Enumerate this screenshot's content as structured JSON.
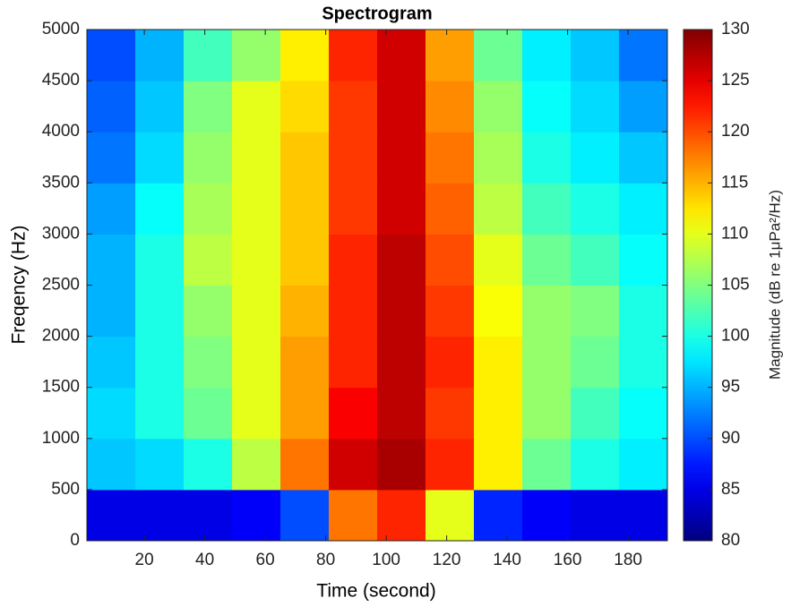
{
  "chart_data": {
    "type": "heatmap",
    "title": "Spectrogram",
    "x_label": "Time (second)",
    "y_label": "Freqency (Hz)",
    "colorbar_label": "Magnitude (dB re 1μPa²/Hz)",
    "colormap": "jet",
    "x": [
      9,
      25,
      41,
      57,
      73,
      89,
      105,
      121,
      137,
      153,
      169,
      185
    ],
    "y": [
      250,
      750,
      1250,
      1750,
      2250,
      2750,
      3250,
      3750,
      4250,
      4750
    ],
    "values": [
      [
        85,
        85,
        85,
        86,
        90,
        118,
        122,
        110,
        88,
        86,
        85,
        85
      ],
      [
        96,
        97,
        100,
        108,
        118,
        126,
        128,
        122,
        112,
        104,
        100,
        98
      ],
      [
        97,
        100,
        104,
        110,
        116,
        124,
        127,
        121,
        112,
        106,
        102,
        99
      ],
      [
        96,
        100,
        105,
        110,
        116,
        122,
        127,
        122,
        112,
        106,
        104,
        100
      ],
      [
        95,
        100,
        106,
        110,
        115,
        122,
        127,
        121,
        111,
        106,
        105,
        100
      ],
      [
        95,
        100,
        108,
        110,
        114,
        122,
        127,
        120,
        110,
        104,
        102,
        99
      ],
      [
        94,
        99,
        107,
        110,
        114,
        121,
        126,
        119,
        108,
        102,
        100,
        98
      ],
      [
        92,
        97,
        106,
        110,
        114,
        121,
        126,
        118,
        107,
        100,
        98,
        96
      ],
      [
        91,
        96,
        105,
        110,
        113,
        121,
        126,
        117,
        106,
        99,
        97,
        94
      ],
      [
        90,
        95,
        102,
        106,
        112,
        122,
        126,
        116,
        104,
        98,
        96,
        92
      ]
    ],
    "xlim": [
      1,
      193
    ],
    "xticks": [
      20,
      40,
      60,
      80,
      100,
      120,
      140,
      160,
      180
    ],
    "ylim": [
      0,
      5000
    ],
    "yticks": [
      0,
      500,
      1000,
      1500,
      2000,
      2500,
      3000,
      3500,
      4000,
      4500,
      5000
    ],
    "clim": [
      80,
      130
    ],
    "cticks": [
      80,
      85,
      90,
      95,
      100,
      105,
      110,
      115,
      120,
      125,
      130
    ]
  }
}
